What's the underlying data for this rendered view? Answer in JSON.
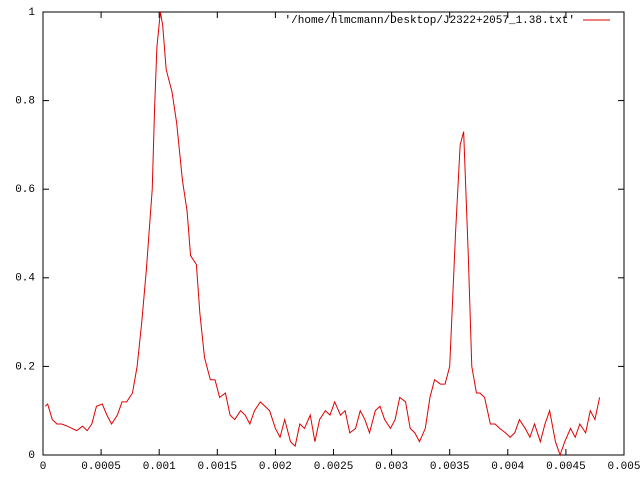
{
  "chart_data": {
    "type": "line",
    "x": [
      2e-05,
      4e-05,
      8e-05,
      0.00012,
      0.00016,
      0.00021,
      0.00025,
      0.00029,
      0.00034,
      0.00038,
      0.00042,
      0.00046,
      0.00051,
      0.00055,
      0.00059,
      0.00064,
      0.00068,
      0.00072,
      0.00077,
      0.00081,
      0.00085,
      0.00089,
      0.00094,
      0.00096,
      0.00098,
      0.00101,
      0.00103,
      0.00106,
      0.00111,
      0.00115,
      0.0012,
      0.00124,
      0.00127,
      0.00132,
      0.00135,
      0.00139,
      0.00144,
      0.00148,
      0.00152,
      0.00157,
      0.00161,
      0.00165,
      0.0017,
      0.00174,
      0.00178,
      0.00182,
      0.00187,
      0.00191,
      0.00195,
      0.002,
      0.00204,
      0.00208,
      0.00213,
      0.00217,
      0.00221,
      0.00225,
      0.0023,
      0.00234,
      0.00238,
      0.00243,
      0.00247,
      0.00251,
      0.00256,
      0.0026,
      0.00264,
      0.00269,
      0.00273,
      0.00277,
      0.00281,
      0.00286,
      0.0029,
      0.00294,
      0.00299,
      0.00303,
      0.00307,
      0.00312,
      0.00316,
      0.0032,
      0.00324,
      0.00329,
      0.00333,
      0.00337,
      0.00342,
      0.00346,
      0.0035,
      0.00355,
      0.00359,
      0.00362,
      0.00366,
      0.00369,
      0.00373,
      0.00376,
      0.0038,
      0.00385,
      0.00389,
      0.00393,
      0.00398,
      0.00402,
      0.00406,
      0.0041,
      0.00415,
      0.00419,
      0.00423,
      0.00428,
      0.00432,
      0.00436,
      0.00441,
      0.00445,
      0.00449,
      0.00454,
      0.00458,
      0.00462,
      0.00467,
      0.00471,
      0.00475,
      0.00479
    ],
    "series": [
      {
        "name": "'/home/nlmcmann/Desktop/J2322+2057_1.38.txt'",
        "color": "#e00000",
        "values": [
          0.11,
          0.115,
          0.08,
          0.07,
          0.07,
          0.065,
          0.06,
          0.055,
          0.065,
          0.055,
          0.07,
          0.11,
          0.115,
          0.09,
          0.07,
          0.09,
          0.12,
          0.12,
          0.14,
          0.2,
          0.3,
          0.42,
          0.6,
          0.78,
          0.92,
          1.0,
          0.97,
          0.87,
          0.82,
          0.75,
          0.62,
          0.55,
          0.45,
          0.43,
          0.32,
          0.22,
          0.17,
          0.17,
          0.13,
          0.14,
          0.09,
          0.08,
          0.1,
          0.09,
          0.07,
          0.1,
          0.12,
          0.11,
          0.1,
          0.06,
          0.04,
          0.08,
          0.03,
          0.02,
          0.07,
          0.06,
          0.09,
          0.03,
          0.08,
          0.1,
          0.09,
          0.12,
          0.09,
          0.1,
          0.05,
          0.06,
          0.1,
          0.08,
          0.05,
          0.1,
          0.11,
          0.08,
          0.06,
          0.08,
          0.13,
          0.12,
          0.06,
          0.05,
          0.03,
          0.06,
          0.13,
          0.17,
          0.16,
          0.16,
          0.2,
          0.5,
          0.7,
          0.73,
          0.45,
          0.2,
          0.14,
          0.14,
          0.13,
          0.07,
          0.07,
          0.06,
          0.05,
          0.04,
          0.05,
          0.08,
          0.06,
          0.04,
          0.07,
          0.03,
          0.07,
          0.1,
          0.03,
          0.0,
          0.03,
          0.06,
          0.04,
          0.07,
          0.05,
          0.1,
          0.08,
          0.13
        ]
      }
    ],
    "xlim": [
      0,
      0.005
    ],
    "xticks": [
      0,
      0.0005,
      0.001,
      0.0015,
      0.002,
      0.0025,
      0.003,
      0.0035,
      0.004,
      0.0045,
      0.005
    ],
    "ylim": [
      0,
      1
    ],
    "yticks": [
      0,
      0.2,
      0.4,
      0.6,
      0.8,
      1
    ],
    "grid": false,
    "legend": "top-right"
  }
}
